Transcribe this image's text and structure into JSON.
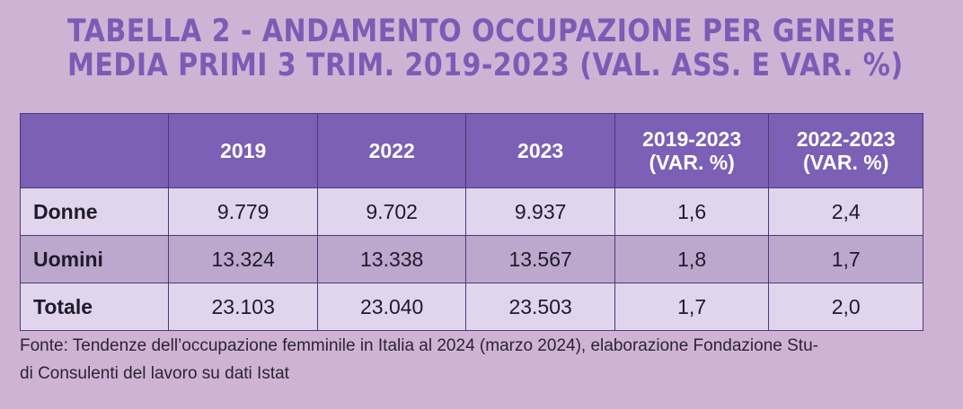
{
  "title": {
    "line1": "TABELLA 2 - ANDAMENTO OCCUPAZIONE PER GENERE",
    "line2": "MEDIA PRIMI 3 TRIM. 2019-2023 (VAL. ASS. E VAR. %)"
  },
  "table": {
    "headers": [
      {
        "line1": "",
        "line2": ""
      },
      {
        "line1": "2019",
        "line2": ""
      },
      {
        "line1": "2022",
        "line2": ""
      },
      {
        "line1": "2023",
        "line2": ""
      },
      {
        "line1": "2019-2023",
        "line2": "(VAR. %)"
      },
      {
        "line1": "2022-2023",
        "line2": "(VAR. %)"
      }
    ],
    "rows": [
      {
        "label": "Donne",
        "v2019": "9.779",
        "v2022": "9.702",
        "v2023": "9.937",
        "var1923": "1,6",
        "var2223": "2,4"
      },
      {
        "label": "Uomini",
        "v2019": "13.324",
        "v2022": "13.338",
        "v2023": "13.567",
        "var1923": "1,8",
        "var2223": "1,7"
      },
      {
        "label": "Totale",
        "v2019": "23.103",
        "v2022": "23.040",
        "v2023": "23.503",
        "var1923": "1,7",
        "var2223": "2,0"
      }
    ]
  },
  "source": {
    "line1": "Fonte: Tendenze dell’occupazione femminile in Italia al 2024 (marzo 2024), elaborazione Fondazione Stu-",
    "line2": "di Consulenti del lavoro su dati Istat"
  },
  "colors": {
    "background": "#cfb3d5",
    "title": "#7b5cb5",
    "header": "#7b60b5",
    "row_light": "#e0d5ec",
    "row_dark": "#bca7cd"
  }
}
